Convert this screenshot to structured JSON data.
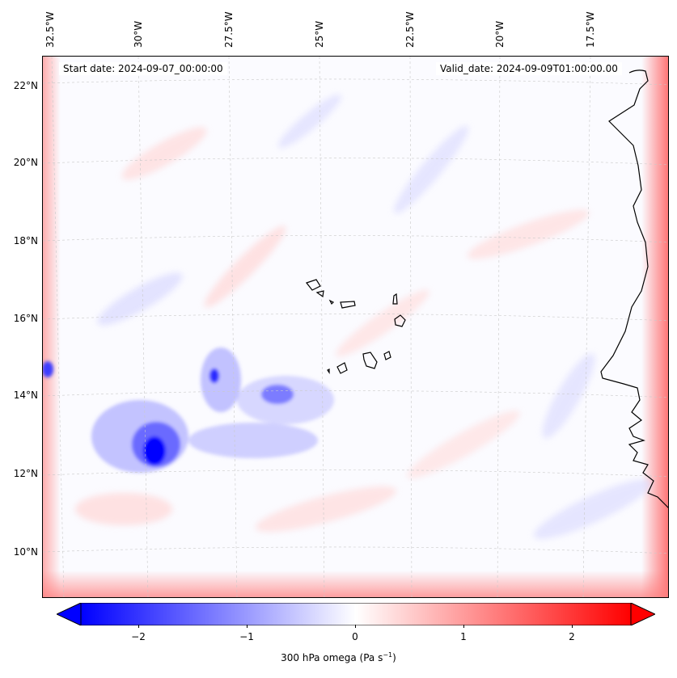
{
  "map": {
    "start_label": "Start date: 2024-09-07_00:00:00",
    "valid_label": "Valid_date: 2024-09-09T01:00:00.00",
    "lon_labels": [
      "32.5°W",
      "30°W",
      "27.5°W",
      "25°W",
      "22.5°W",
      "20°W",
      "17.5°W"
    ],
    "lat_labels": [
      "22°N",
      "20°N",
      "18°N",
      "16°N",
      "14°N",
      "12°N",
      "10°N"
    ],
    "variable": "300 hPa omega",
    "colormap": "bwr",
    "colors": {
      "negative": "#0000ff",
      "neutral": "#ffffff",
      "positive": "#ff0000",
      "coast": "#000000"
    }
  },
  "colorbar": {
    "ticks": [
      "−2",
      "−1",
      "0",
      "1",
      "2"
    ],
    "range": [
      -2.7,
      2.7
    ],
    "label_text": "300 hPa omega (Pa s",
    "label_exp": "−1",
    "label_close": ")"
  }
}
